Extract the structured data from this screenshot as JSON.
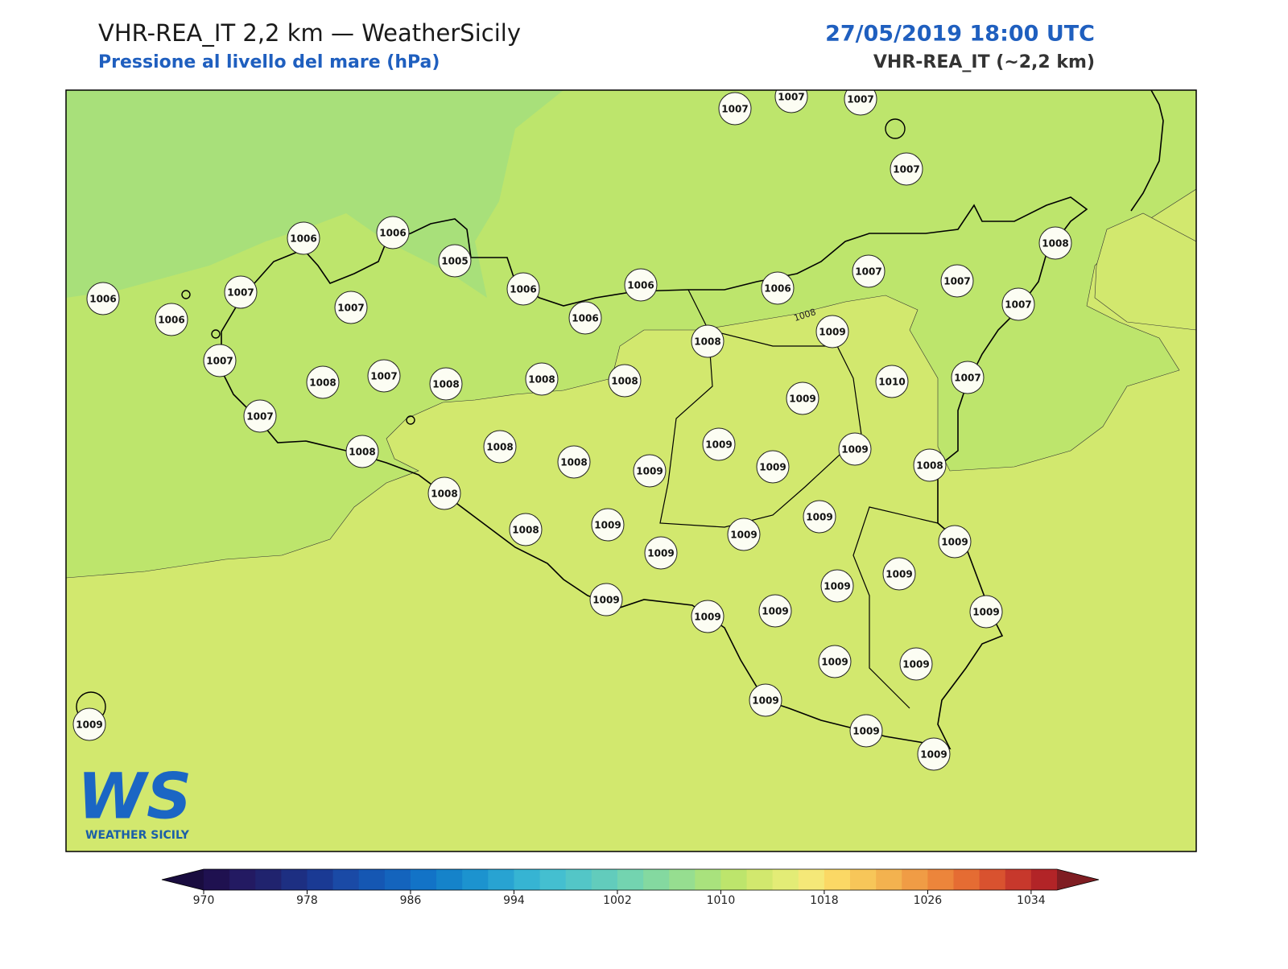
{
  "header": {
    "title": "VHR-REA_IT 2,2 km — WeatherSicily",
    "subtitle": "Pressione al livello del mare (hPa)",
    "datetime": "27/05/2019 18:00 UTC",
    "model": "VHR-REA_IT (~2,2 km)"
  },
  "map": {
    "stations": [
      1007,
      1007,
      1007,
      1007,
      1006,
      1006,
      1005,
      1006,
      1006,
      1006,
      1006,
      1007,
      1007,
      1008,
      1007,
      1006,
      1006,
      1007,
      1007,
      1007,
      1008,
      1007,
      1008,
      1008,
      1008,
      1008,
      1009,
      1010,
      1007,
      1007,
      1008,
      1008,
      1008,
      1009,
      1009,
      1009,
      1009,
      1009,
      1008,
      1008,
      1008,
      1009,
      1009,
      1009,
      1009,
      1009,
      1009,
      1009,
      1009,
      1009,
      1009,
      1009,
      1009,
      1009,
      1009,
      1009,
      1009,
      1009
    ],
    "contour_labels": [
      "1008"
    ],
    "fill_colors": [
      "#a8e07a",
      "#bde56c",
      "#d2e86e"
    ]
  },
  "logo": {
    "mark": "WS",
    "name": "WEATHER SICILY"
  },
  "colorbar": {
    "lim": [
      970,
      1036
    ],
    "ticks": [
      970,
      978,
      986,
      994,
      1002,
      1010,
      1018,
      1026,
      1034
    ],
    "colors": [
      "#1f1150",
      "#231a62",
      "#20236e",
      "#1d2f82",
      "#1a3a94",
      "#1a4aa6",
      "#1557b3",
      "#1464bd",
      "#1273c7",
      "#1583ca",
      "#1c93cf",
      "#28a3d2",
      "#36b4d3",
      "#44bfd0",
      "#53c6c7",
      "#62ccbc",
      "#73d4b0",
      "#84d9a0",
      "#96de90",
      "#a9e27d",
      "#bde56c",
      "#d2e86e",
      "#e3ec76",
      "#f5e878",
      "#fbd865",
      "#f7c659",
      "#f3b24f",
      "#f09c45",
      "#ec853b",
      "#e56c33",
      "#d9522f",
      "#c7382c",
      "#b22427"
    ],
    "extend_colors": [
      "#190c3f",
      "#7f1d22"
    ]
  }
}
